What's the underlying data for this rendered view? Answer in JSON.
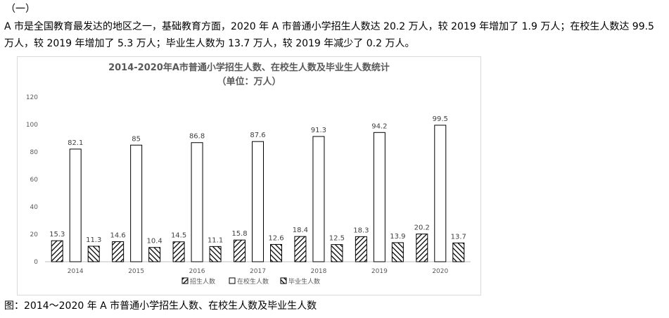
{
  "heading": "（一）",
  "paragraph": "A 市是全国教育最发达的地区之一，基础教育方面，2020 年 A 市普通小学招生人数达 20.2 万人，较 2019 年增加了 1.9 万人；在校生人数达 99.5 万人，较 2019 年增加了 5.3 万人；毕业生人数为 13.7 万人，较 2019 年减少了 0.2 万人。",
  "caption": "图：2014～2020 年 A 市普通小学招生人数、在校生人数及毕业生人数",
  "chart_data": {
    "type": "bar",
    "title": "2014-2020年A市普通小学招生人数、在校生人数及毕业生人数统计",
    "subtitle": "（单位：万人）",
    "categories": [
      "2014",
      "2015",
      "2016",
      "2017",
      "2018",
      "2019",
      "2020"
    ],
    "ylim": [
      0,
      120
    ],
    "yticks": [
      0,
      20,
      40,
      60,
      80,
      100,
      120
    ],
    "grid": false,
    "legend_position": "bottom",
    "series": [
      {
        "name": "招生人数",
        "pattern": "diagonal-hatch",
        "values": [
          15.3,
          14.6,
          14.5,
          15.8,
          18.4,
          18.3,
          20.2
        ]
      },
      {
        "name": "在校生人数",
        "pattern": "white",
        "values": [
          82.1,
          85,
          86.8,
          87.6,
          91.3,
          94.2,
          99.5
        ]
      },
      {
        "name": "毕业生人数",
        "pattern": "reverse-hatch",
        "values": [
          11.3,
          10.4,
          11.1,
          12.6,
          12.5,
          13.9,
          13.7
        ]
      }
    ]
  }
}
